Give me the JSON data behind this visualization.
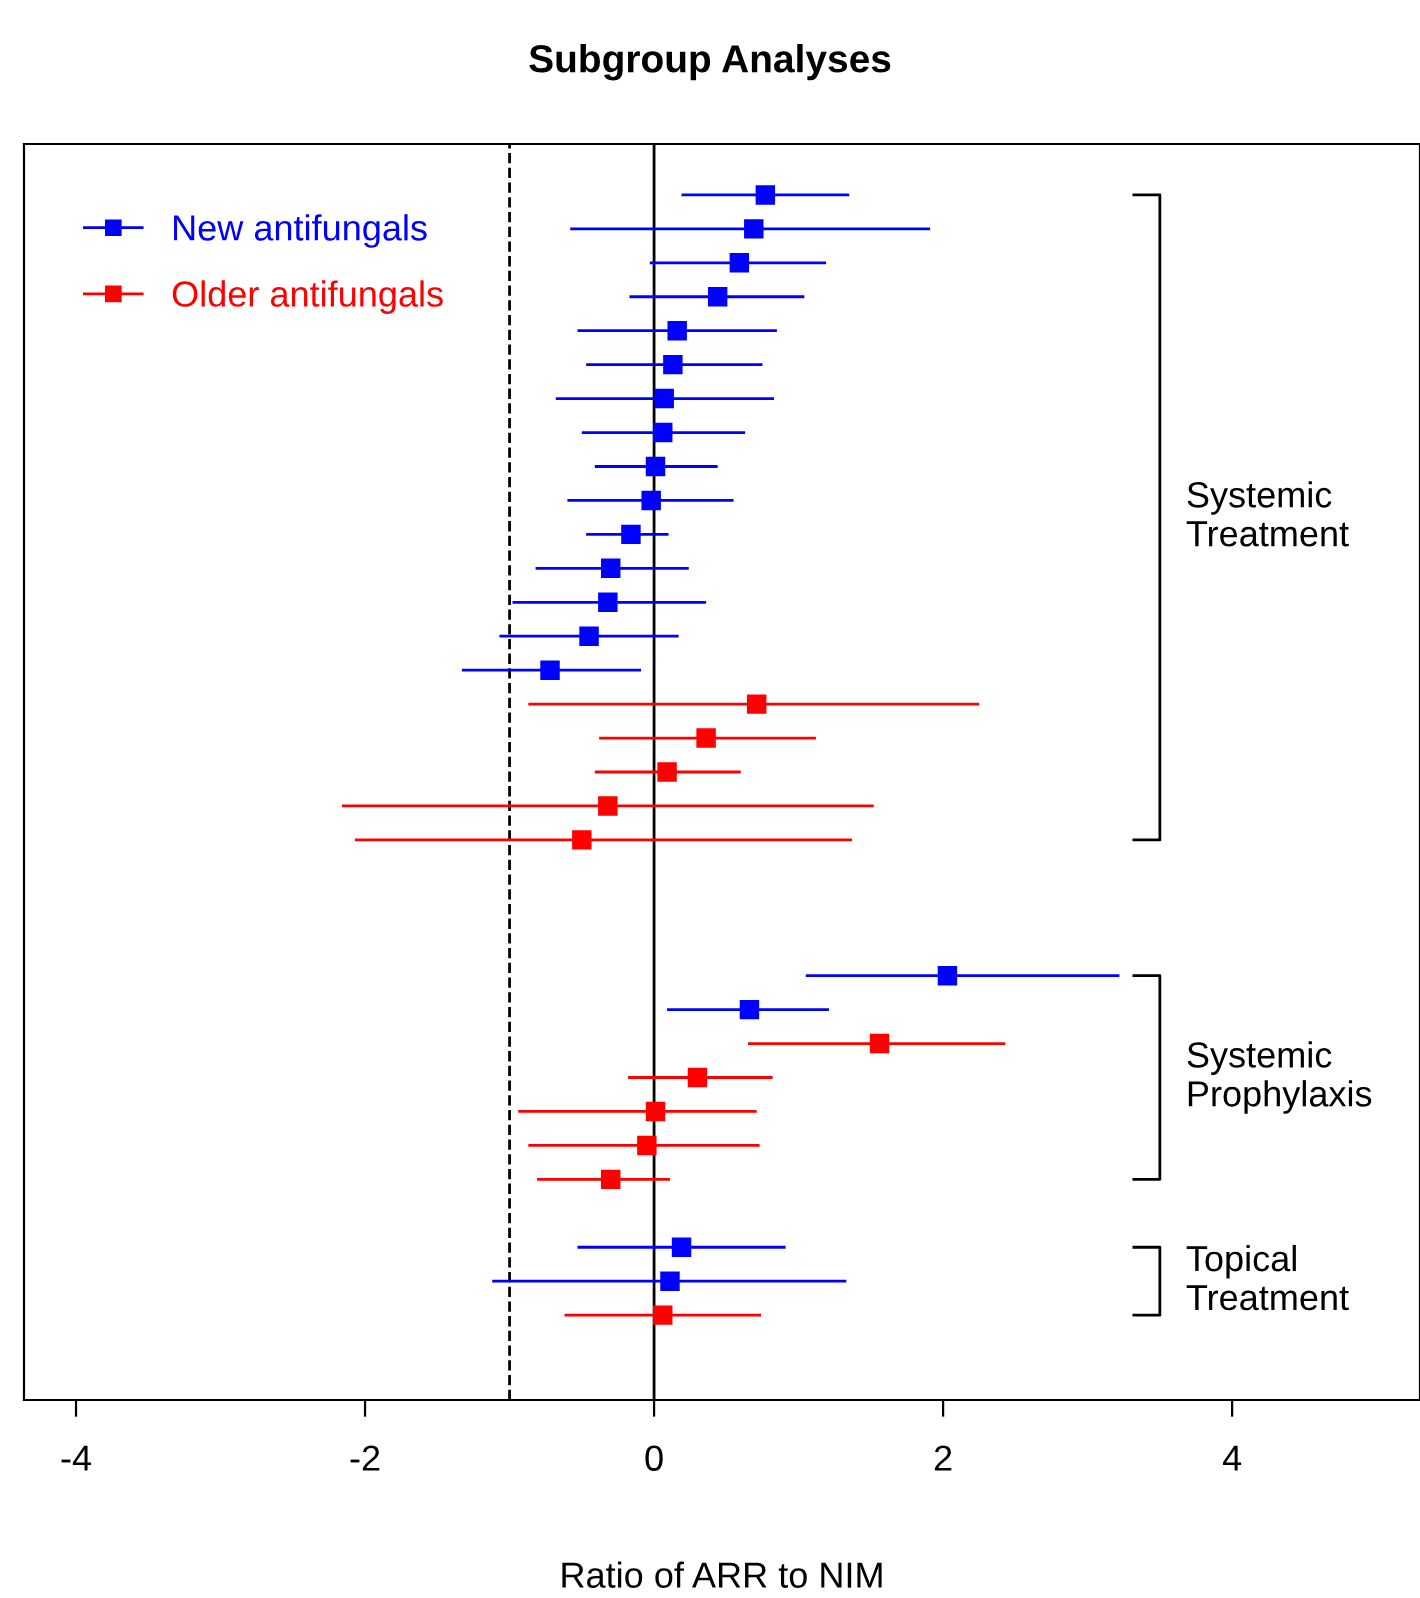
{
  "chart_data": {
    "type": "scatter",
    "orientation": "horizontal",
    "title": "Subgroup Analyses",
    "xlabel": "Ratio of ARR to NIM",
    "categories": [
      null,
      null,
      null,
      null,
      null,
      null,
      null,
      null,
      null,
      null,
      null,
      null,
      null,
      null,
      null,
      null,
      null,
      null,
      null,
      null,
      null,
      null,
      null,
      null,
      null,
      null,
      null,
      null,
      null,
      null,
      null,
      null,
      null,
      null,
      null,
      null,
      null
    ],
    "series": [
      {
        "name": "New antifungals",
        "color": "#0000ff",
        "values": [
          null,
          0.77,
          0.69,
          0.59,
          0.44,
          0.16,
          0.13,
          0.07,
          0.06,
          0.01,
          -0.02,
          -0.16,
          -0.3,
          -0.32,
          -0.45,
          -0.72,
          null,
          null,
          null,
          null,
          null,
          null,
          null,
          null,
          2.03,
          0.66,
          null,
          null,
          null,
          null,
          null,
          null,
          0.19,
          0.11,
          null,
          null,
          null
        ],
        "errors": [
          null,
          [
            0.19,
            1.35
          ],
          [
            -0.58,
            1.91
          ],
          [
            -0.03,
            1.19
          ],
          [
            -0.17,
            1.04
          ],
          [
            -0.53,
            0.85
          ],
          [
            -0.47,
            0.75
          ],
          [
            -0.68,
            0.83
          ],
          [
            -0.5,
            0.63
          ],
          [
            -0.41,
            0.44
          ],
          [
            -0.6,
            0.55
          ],
          [
            -0.47,
            0.1
          ],
          [
            -0.82,
            0.24
          ],
          [
            -0.98,
            0.36
          ],
          [
            -1.07,
            0.17
          ],
          [
            -1.33,
            -0.09
          ],
          null,
          null,
          null,
          null,
          null,
          null,
          null,
          null,
          [
            1.05,
            3.22
          ],
          [
            0.09,
            1.21
          ],
          null,
          null,
          null,
          null,
          null,
          null,
          [
            -0.53,
            0.91
          ],
          [
            -1.12,
            1.33
          ],
          null,
          null,
          null
        ]
      },
      {
        "name": "Older antifungals",
        "color": "#ff0000",
        "values": [
          null,
          null,
          null,
          null,
          null,
          null,
          null,
          null,
          null,
          null,
          null,
          null,
          null,
          null,
          null,
          null,
          0.71,
          0.36,
          0.09,
          -0.32,
          -0.5,
          null,
          null,
          null,
          null,
          null,
          1.56,
          0.3,
          0.01,
          -0.05,
          -0.3,
          null,
          null,
          null,
          0.06,
          null,
          null
        ],
        "errors": [
          null,
          null,
          null,
          null,
          null,
          null,
          null,
          null,
          null,
          null,
          null,
          null,
          null,
          null,
          null,
          null,
          [
            -0.87,
            2.25
          ],
          [
            -0.38,
            1.12
          ],
          [
            -0.41,
            0.6
          ],
          [
            -2.16,
            1.52
          ],
          [
            -2.07,
            1.37
          ],
          null,
          null,
          null,
          null,
          null,
          [
            0.65,
            2.43
          ],
          [
            -0.18,
            0.82
          ],
          [
            -0.94,
            0.71
          ],
          [
            -0.87,
            0.73
          ],
          [
            -0.81,
            0.11
          ],
          null,
          null,
          null,
          [
            -0.62,
            0.74
          ],
          null,
          null
        ]
      }
    ],
    "xlim": [
      -4.36,
      5.3
    ],
    "xticks": [
      -4,
      -2,
      0,
      2,
      4
    ],
    "ref_lines": [
      {
        "axis": "x",
        "value": -1,
        "color": "#000000",
        "line_style": "dashed"
      },
      {
        "axis": "x",
        "value": 0,
        "color": "#000000",
        "line_style": "solid"
      }
    ],
    "annotations": [
      "Systemic\nTreatment",
      "Systemic\nProphylaxis",
      "Topical\nTreatment"
    ],
    "legend": "top left",
    "marker": "square",
    "line_style": "solid",
    "tick_labels": "x",
    "grid": false
  }
}
